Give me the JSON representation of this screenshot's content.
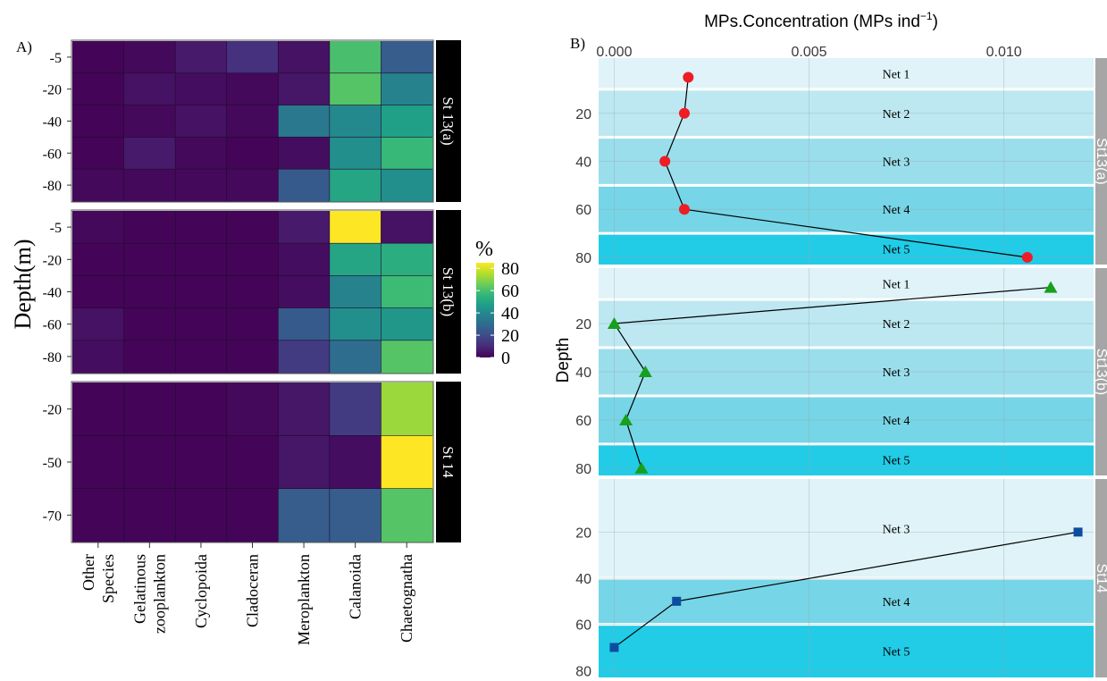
{
  "panel_a": {
    "label": "A)",
    "ylabel": "Depth(m)",
    "categories": [
      "Other\nSpecies",
      "Gelatinous\nzooplankton",
      "Cyclopoida",
      "Cladoceran",
      "Meroplankton",
      "Calanoida",
      "Chaetognatha"
    ],
    "legend": {
      "title": "%",
      "ticks": [
        "80",
        "60",
        "40",
        "20",
        "0"
      ],
      "tick_values": [
        80,
        60,
        40,
        20,
        0
      ],
      "range": [
        0,
        85
      ]
    },
    "facets": [
      {
        "strip": "St 13(a)",
        "depths": [
          "-5",
          "-20",
          "-40",
          "-60",
          "-80"
        ],
        "values": [
          [
            1,
            2,
            6,
            12,
            4,
            60,
            25
          ],
          [
            1,
            4,
            3,
            2,
            5,
            62,
            38
          ],
          [
            1,
            2,
            4,
            2,
            34,
            40,
            48
          ],
          [
            1,
            6,
            2,
            1,
            3,
            42,
            57
          ],
          [
            2,
            2,
            2,
            2,
            24,
            50,
            42
          ]
        ]
      },
      {
        "strip": "St 13(b)",
        "depths": [
          "-5",
          "-20",
          "-40",
          "-60",
          "-80"
        ],
        "values": [
          [
            2,
            1,
            1,
            1,
            6,
            85,
            4
          ],
          [
            1,
            1,
            1,
            1,
            3,
            50,
            53
          ],
          [
            1,
            1,
            1,
            1,
            3,
            38,
            58
          ],
          [
            4,
            1,
            1,
            1,
            24,
            42,
            45
          ],
          [
            3,
            1,
            1,
            1,
            15,
            30,
            62
          ]
        ]
      },
      {
        "strip": "St 14",
        "depths": [
          "-20",
          "-50",
          "-70"
        ],
        "values": [
          [
            1,
            1,
            1,
            2,
            5,
            15,
            72
          ],
          [
            1,
            1,
            1,
            1,
            5,
            3,
            85
          ],
          [
            1,
            1,
            1,
            1,
            25,
            25,
            62
          ]
        ]
      }
    ]
  },
  "panel_b": {
    "label": "B)",
    "xlabel": "MPs.Concentration (MPs ind",
    "xlabel_sup": "−1",
    "xlabel_close": ")",
    "ylabel": "Depth",
    "x_ticks": [
      "0.000",
      "0.005",
      "0.010"
    ],
    "x_tick_values": [
      0,
      0.005,
      0.01
    ],
    "xlim": [
      -0.0004,
      0.0123
    ],
    "y_ticks": [
      "20",
      "40",
      "60",
      "80"
    ],
    "y_tick_values": [
      20,
      40,
      60,
      80
    ],
    "ylim": [
      -3,
      83
    ],
    "band_colors": [
      "#dff3f8",
      "#bde8f2",
      "#9adeec",
      "#76d5e6",
      "#22cbe6"
    ],
    "facets": [
      {
        "strip": "St13(a)",
        "marker": "circle",
        "color": "#ee1c25",
        "bands": [
          {
            "label": "Net 1",
            "from": -3,
            "to": 10,
            "shade": 0
          },
          {
            "label": "Net 2",
            "from": 10,
            "to": 30,
            "shade": 1
          },
          {
            "label": "Net 3",
            "from": 30,
            "to": 50,
            "shade": 2
          },
          {
            "label": "Net 4",
            "from": 50,
            "to": 70,
            "shade": 3
          },
          {
            "label": "Net 5",
            "from": 70,
            "to": 83,
            "shade": 4
          }
        ],
        "points": [
          {
            "x": 0.0019,
            "y": 5
          },
          {
            "x": 0.0018,
            "y": 20
          },
          {
            "x": 0.0013,
            "y": 40
          },
          {
            "x": 0.0018,
            "y": 60
          },
          {
            "x": 0.0106,
            "y": 80
          }
        ]
      },
      {
        "strip": "St13(b)",
        "marker": "triangle",
        "color": "#16a01b",
        "bands": [
          {
            "label": "Net 1",
            "from": -3,
            "to": 10,
            "shade": 0
          },
          {
            "label": "Net 2",
            "from": 10,
            "to": 30,
            "shade": 1
          },
          {
            "label": "Net 3",
            "from": 30,
            "to": 50,
            "shade": 2
          },
          {
            "label": "Net 4",
            "from": 50,
            "to": 70,
            "shade": 3
          },
          {
            "label": "Net 5",
            "from": 70,
            "to": 83,
            "shade": 4
          }
        ],
        "points": [
          {
            "x": 0.0112,
            "y": 5
          },
          {
            "x": 0.0,
            "y": 20
          },
          {
            "x": 0.0008,
            "y": 40
          },
          {
            "x": 0.0003,
            "y": 60
          },
          {
            "x": 0.0007,
            "y": 80
          }
        ]
      },
      {
        "strip": "St14",
        "marker": "square",
        "color": "#0d4da1",
        "bands": [
          {
            "label": "Net 3",
            "from": -3,
            "to": 40,
            "shade": 0
          },
          {
            "label": "Net 4",
            "from": 40,
            "to": 60,
            "shade": 3
          },
          {
            "label": "Net 5",
            "from": 60,
            "to": 83,
            "shade": 4
          }
        ],
        "points": [
          {
            "x": 0.0119,
            "y": 20
          },
          {
            "x": 0.0016,
            "y": 50
          },
          {
            "x": 0.0,
            "y": 70
          }
        ]
      }
    ]
  }
}
